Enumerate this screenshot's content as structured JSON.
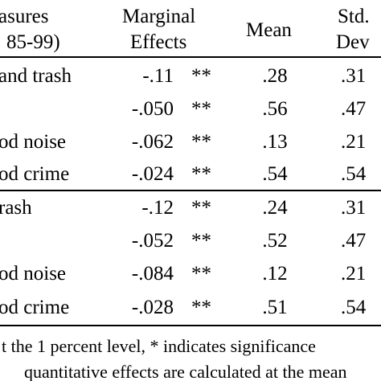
{
  "header": {
    "measures_line1": "asures",
    "measures_line2": "85-99)",
    "marginal_line1": "Marginal",
    "marginal_line2": "Effects",
    "mean": "Mean",
    "std_line1": "Std.",
    "std_line2": "Dev"
  },
  "rows_top": [
    {
      "label": "and trash",
      "effect": "-.11",
      "sig": "**",
      "mean": ".28",
      "std": ".31"
    },
    {
      "label": "",
      "effect": "-.050",
      "sig": "**",
      "mean": ".56",
      "std": ".47"
    },
    {
      "label": "od noise",
      "effect": "-.062",
      "sig": "**",
      "mean": ".13",
      "std": ".21"
    },
    {
      "label": "od crime",
      "effect": "-.024",
      "sig": "**",
      "mean": ".54",
      "std": ".54"
    }
  ],
  "rows_bottom": [
    {
      "label": "rash",
      "effect": "-.12",
      "sig": "**",
      "mean": ".24",
      "std": ".31"
    },
    {
      "label": "",
      "effect": "-.052",
      "sig": "**",
      "mean": ".52",
      "std": ".47"
    },
    {
      "label": "od noise",
      "effect": "-.084",
      "sig": "**",
      "mean": ".12",
      "std": ".21"
    },
    {
      "label": "od crime",
      "effect": "-.028",
      "sig": "**",
      "mean": ".51",
      "std": ".54"
    }
  ],
  "footnote": {
    "line1": "t the 1 percent level, * indicates significance",
    "line2": "quantitative effects are calculated at the mean"
  }
}
